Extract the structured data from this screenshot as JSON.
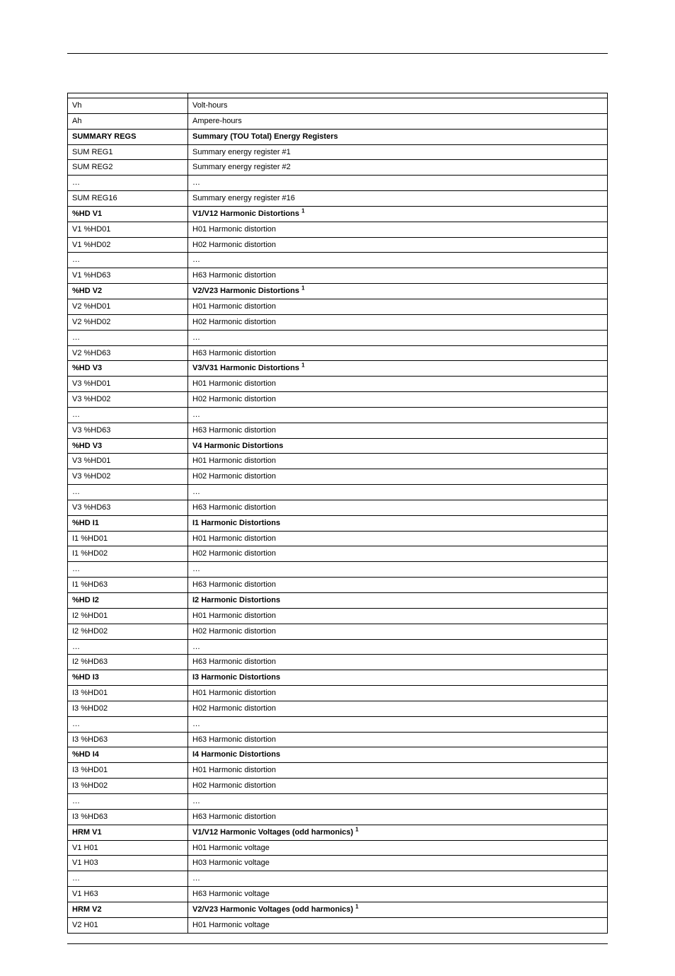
{
  "rows": [
    {
      "c1": "",
      "c2": "",
      "bold": false
    },
    {
      "c1": "Vh",
      "c2": "Volt-hours",
      "bold": false
    },
    {
      "c1": "Ah",
      "c2": "Ampere-hours",
      "bold": false
    },
    {
      "c1": "SUMMARY REGS",
      "c2": "Summary (TOU Total) Energy Registers",
      "bold": true
    },
    {
      "c1": "SUM REG1",
      "c2": "Summary energy register #1",
      "bold": false
    },
    {
      "c1": "SUM REG2",
      "c2": "Summary energy register #2",
      "bold": false
    },
    {
      "c1": "…",
      "c2": "…",
      "bold": false
    },
    {
      "c1": "SUM REG16",
      "c2": "Summary energy register #16",
      "bold": false
    },
    {
      "c1": "%HD V1",
      "c2": "V1/V12 Harmonic Distortions",
      "bold": true,
      "sup": "1"
    },
    {
      "c1": "V1 %HD01",
      "c2": "H01 Harmonic distortion",
      "bold": false
    },
    {
      "c1": "V1 %HD02",
      "c2": "H02 Harmonic distortion",
      "bold": false
    },
    {
      "c1": "…",
      "c2": "…",
      "bold": false
    },
    {
      "c1": "V1 %HD63",
      "c2": "H63 Harmonic distortion",
      "bold": false
    },
    {
      "c1": "%HD V2",
      "c2": "V2/V23 Harmonic Distortions",
      "bold": true,
      "sup": "1"
    },
    {
      "c1": "V2 %HD01",
      "c2": "H01 Harmonic distortion",
      "bold": false
    },
    {
      "c1": "V2 %HD02",
      "c2": "H02 Harmonic distortion",
      "bold": false
    },
    {
      "c1": "…",
      "c2": "…",
      "bold": false
    },
    {
      "c1": "V2 %HD63",
      "c2": "H63 Harmonic distortion",
      "bold": false
    },
    {
      "c1": "%HD V3",
      "c2": "V3/V31 Harmonic Distortions",
      "bold": true,
      "sup": "1"
    },
    {
      "c1": "V3 %HD01",
      "c2": "H01 Harmonic distortion",
      "bold": false
    },
    {
      "c1": "V3 %HD02",
      "c2": "H02 Harmonic distortion",
      "bold": false
    },
    {
      "c1": "…",
      "c2": "…",
      "bold": false
    },
    {
      "c1": "V3 %HD63",
      "c2": "H63 Harmonic distortion",
      "bold": false
    },
    {
      "c1": "%HD V3",
      "c2": "V4 Harmonic Distortions",
      "bold": true
    },
    {
      "c1": "V3 %HD01",
      "c2": "H01 Harmonic distortion",
      "bold": false
    },
    {
      "c1": "V3 %HD02",
      "c2": "H02 Harmonic distortion",
      "bold": false
    },
    {
      "c1": "…",
      "c2": "…",
      "bold": false
    },
    {
      "c1": "V3 %HD63",
      "c2": "H63 Harmonic distortion",
      "bold": false
    },
    {
      "c1": "%HD I1",
      "c2": "I1 Harmonic Distortions",
      "bold": true
    },
    {
      "c1": "I1 %HD01",
      "c2": "H01 Harmonic distortion",
      "bold": false
    },
    {
      "c1": "I1 %HD02",
      "c2": "H02 Harmonic distortion",
      "bold": false
    },
    {
      "c1": "…",
      "c2": "…",
      "bold": false
    },
    {
      "c1": "I1 %HD63",
      "c2": "H63 Harmonic distortion",
      "bold": false
    },
    {
      "c1": "%HD I2",
      "c2": "I2 Harmonic Distortions",
      "bold": true
    },
    {
      "c1": "I2 %HD01",
      "c2": "H01 Harmonic distortion",
      "bold": false
    },
    {
      "c1": "I2 %HD02",
      "c2": "H02 Harmonic distortion",
      "bold": false
    },
    {
      "c1": "…",
      "c2": "…",
      "bold": false
    },
    {
      "c1": "I2 %HD63",
      "c2": "H63 Harmonic distortion",
      "bold": false
    },
    {
      "c1": "%HD I3",
      "c2": "I3 Harmonic Distortions",
      "bold": true
    },
    {
      "c1": "I3 %HD01",
      "c2": "H01 Harmonic distortion",
      "bold": false
    },
    {
      "c1": "I3 %HD02",
      "c2": "H02 Harmonic distortion",
      "bold": false
    },
    {
      "c1": "…",
      "c2": "…",
      "bold": false
    },
    {
      "c1": "I3 %HD63",
      "c2": "H63 Harmonic distortion",
      "bold": false
    },
    {
      "c1": "%HD I4",
      "c2": "I4 Harmonic Distortions",
      "bold": true
    },
    {
      "c1": "I3 %HD01",
      "c2": "H01 Harmonic distortion",
      "bold": false
    },
    {
      "c1": "I3 %HD02",
      "c2": "H02 Harmonic distortion",
      "bold": false
    },
    {
      "c1": "…",
      "c2": "…",
      "bold": false
    },
    {
      "c1": "I3 %HD63",
      "c2": "H63 Harmonic distortion",
      "bold": false
    },
    {
      "c1": "HRM V1",
      "c2": "V1/V12 Harmonic Voltages (odd harmonics)",
      "bold": true,
      "sup": "1"
    },
    {
      "c1": "V1 H01",
      "c2": "H01 Harmonic voltage",
      "bold": false
    },
    {
      "c1": "V1 H03",
      "c2": "H03 Harmonic voltage",
      "bold": false
    },
    {
      "c1": "…",
      "c2": "…",
      "bold": false
    },
    {
      "c1": "V1 H63",
      "c2": "H63 Harmonic voltage",
      "bold": false
    },
    {
      "c1": "HRM V2",
      "c2": "V2/V23 Harmonic Voltages (odd harmonics)",
      "bold": true,
      "sup": "1"
    },
    {
      "c1": "V2 H01",
      "c2": "H01 Harmonic voltage",
      "bold": false
    }
  ]
}
